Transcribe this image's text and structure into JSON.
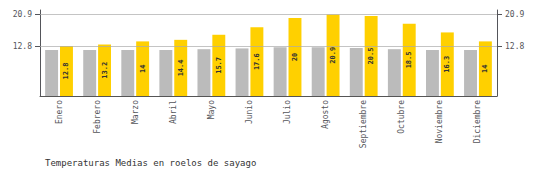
{
  "chart_data": {
    "type": "bar",
    "title": "Temperaturas Medias en roelos de sayago",
    "categories": [
      "Enero",
      "Febrero",
      "Marzo",
      "Abril",
      "Mayo",
      "Junio",
      "Julio",
      "Agosto",
      "Septiembre",
      "Octubre",
      "Noviembre",
      "Diciembre"
    ],
    "series": [
      {
        "color": "#BBBBBB",
        "values": [
          11.8,
          11.8,
          11.8,
          11.8,
          12.0,
          12.2,
          12.5,
          12.5,
          12.3,
          12.0,
          11.8,
          11.8
        ]
      },
      {
        "color": "#FFD000",
        "values": [
          12.8,
          13.2,
          14.0,
          14.4,
          15.7,
          17.6,
          20.0,
          20.9,
          20.5,
          18.5,
          16.3,
          14.0
        ],
        "data_labels": true
      }
    ],
    "ylim": [
      0,
      22.0495
    ],
    "yticks": [
      12.8,
      20.9
    ],
    "y2lim": [
      0,
      22.0495
    ],
    "y2ticks": [
      12.8,
      20.9
    ],
    "grid": true
  }
}
